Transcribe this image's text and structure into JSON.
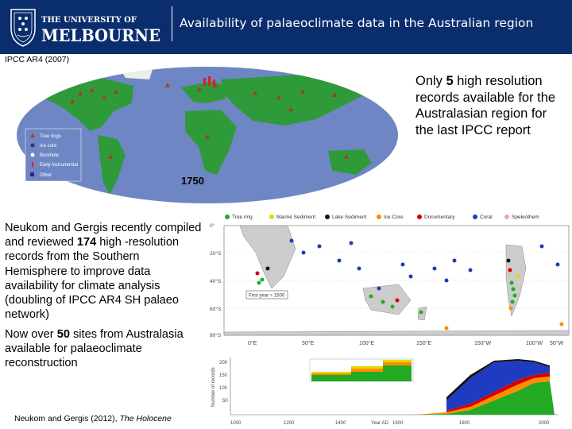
{
  "header": {
    "logo_line1": "THE UNIVERSITY OF",
    "logo_line2": "MELBOURNE",
    "title": "Availability of palaeoclimate data in the Australian region",
    "colors": {
      "background": "#0a2d6e",
      "text": "#ffffff"
    }
  },
  "world_map": {
    "label": "IPCC AR4 (2007)",
    "year": "1750",
    "legend": [
      "Tree rings",
      "Ice core",
      "Borehole",
      "Early instrumental",
      "Other"
    ]
  },
  "callout": {
    "pre": "Only ",
    "count": "5",
    "post": " high resolution records available for the Australasian region for the last IPCC report"
  },
  "paragraph1": {
    "pre": "Neukom and Gergis recently compiled and reviewed ",
    "count": "174",
    "post": " high -resolution records from the Southern Hemisphere to improve data availability for climate analysis (doubling of IPCC AR4 SH palaeo network)"
  },
  "paragraph2": {
    "pre": "Now over ",
    "count": "50",
    "post": " sites from Australasia available for palaeoclimate reconstruction"
  },
  "citation": {
    "authors": "Neukom and Gergis (2012), ",
    "journal": "The Holocene"
  },
  "sh_map": {
    "legend": [
      "Tree ring",
      "Marine Sediment",
      "Lake Sediment",
      "Ice Core",
      "Documentary",
      "Coral",
      "Speleothem"
    ],
    "legend_colors": [
      "#22aa22",
      "#e6d800",
      "#111111",
      "#ff8c00",
      "#d40000",
      "#1f3bbf",
      "#f0a0c8"
    ],
    "lon_ticks": [
      "0°E",
      "50°E",
      "100°E",
      "150°E",
      "150°W",
      "100°W",
      "50°W"
    ],
    "lat_ticks": [
      "0°",
      "20°S",
      "40°S",
      "60°S",
      "80°S"
    ],
    "inset_label": "First year = 1500"
  },
  "timeseries": {
    "ylabel": "Number of records",
    "y_ticks": [
      "200",
      "150",
      "100",
      "50"
    ],
    "x_ticks": [
      "1000",
      "1200",
      "1400",
      "Year AD",
      "1600",
      "1800",
      "2000"
    ]
  }
}
